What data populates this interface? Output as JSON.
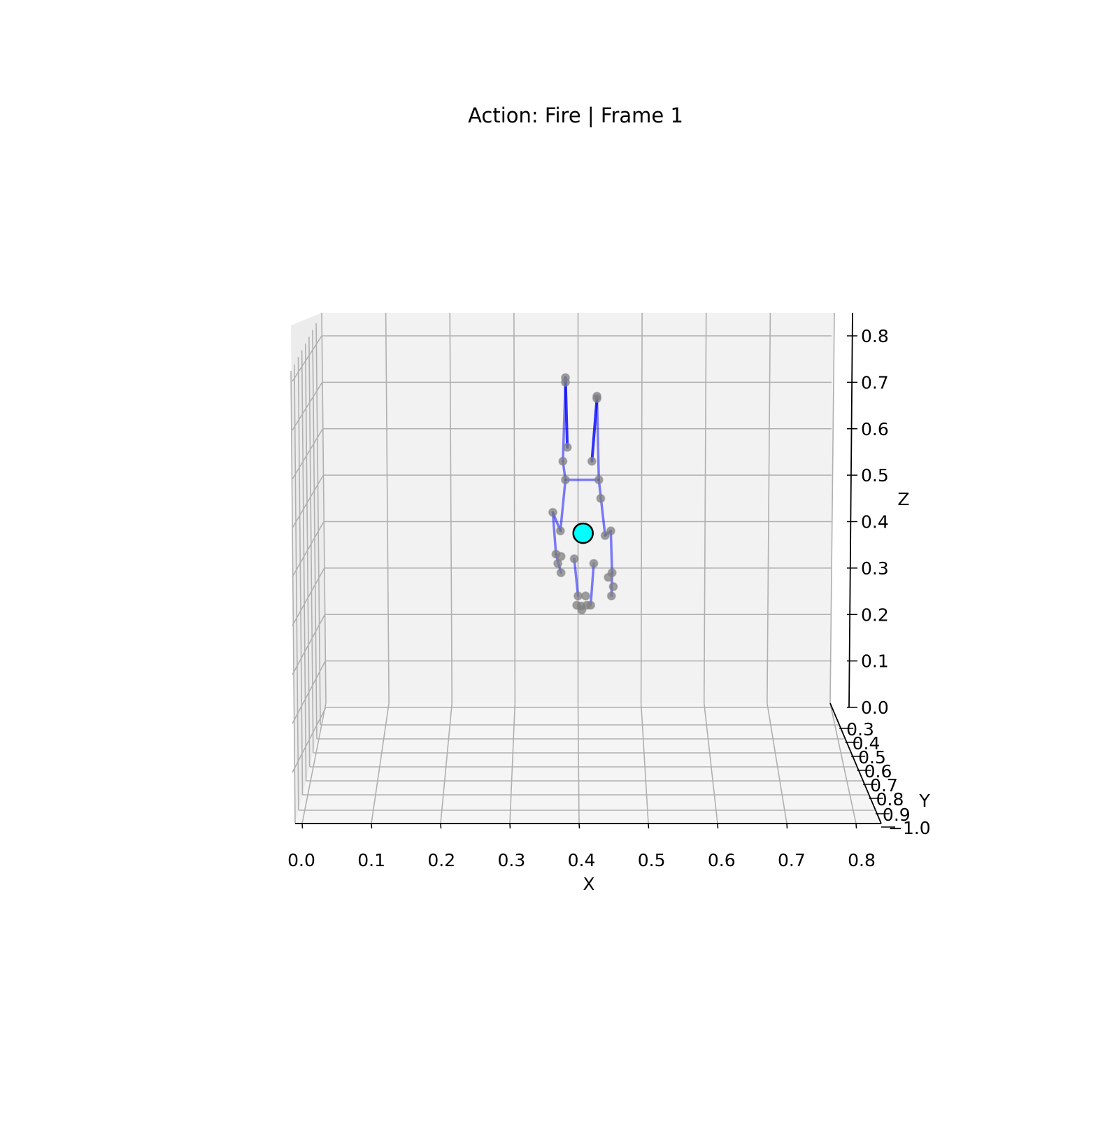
{
  "chart_data": {
    "type": "scatter",
    "projection": "3d",
    "title": "Action: Fire | Frame 1",
    "xlabel": "X",
    "ylabel": "Y",
    "zlabel": "Z",
    "xlim": [
      0.0,
      0.8
    ],
    "ylim": [
      -1.0,
      0.3
    ],
    "zlim": [
      0.0,
      0.8
    ],
    "x_ticks": [
      "0.0",
      "0.1",
      "0.2",
      "0.3",
      "0.4",
      "0.5",
      "0.6",
      "0.7",
      "0.8"
    ],
    "y_ticks": [
      "0.3",
      "0.4",
      "0.5",
      "0.6",
      "0.7",
      "0.8",
      "0.9",
      "−1.0"
    ],
    "z_ticks": [
      "0.0",
      "0.1",
      "0.2",
      "0.3",
      "0.4",
      "0.5",
      "0.6",
      "0.7",
      "0.8"
    ],
    "grid": true,
    "colors": {
      "bone": "#0000ff",
      "joint": "#808080",
      "highlight": "#00ffff",
      "pane": "#f2f2f2",
      "grid": "#b0b0b0"
    },
    "joints": [
      {
        "x": 0.38,
        "z": 0.71
      },
      {
        "x": 0.38,
        "z": 0.7
      },
      {
        "x": 0.383,
        "z": 0.56
      },
      {
        "x": 0.376,
        "z": 0.53
      },
      {
        "x": 0.43,
        "z": 0.67
      },
      {
        "x": 0.43,
        "z": 0.665
      },
      {
        "x": 0.422,
        "z": 0.53
      },
      {
        "x": 0.38,
        "z": 0.49
      },
      {
        "x": 0.433,
        "z": 0.49
      },
      {
        "x": 0.436,
        "z": 0.45
      },
      {
        "x": 0.36,
        "z": 0.42
      },
      {
        "x": 0.372,
        "z": 0.38
      },
      {
        "x": 0.365,
        "z": 0.33
      },
      {
        "x": 0.373,
        "z": 0.325
      },
      {
        "x": 0.368,
        "z": 0.31
      },
      {
        "x": 0.373,
        "z": 0.29
      },
      {
        "x": 0.443,
        "z": 0.37
      },
      {
        "x": 0.452,
        "z": 0.38
      },
      {
        "x": 0.454,
        "z": 0.29
      },
      {
        "x": 0.448,
        "z": 0.28
      },
      {
        "x": 0.456,
        "z": 0.26
      },
      {
        "x": 0.453,
        "z": 0.24
      },
      {
        "x": 0.394,
        "z": 0.32
      },
      {
        "x": 0.425,
        "z": 0.31
      },
      {
        "x": 0.4,
        "z": 0.24
      },
      {
        "x": 0.412,
        "z": 0.24
      },
      {
        "x": 0.398,
        "z": 0.22
      },
      {
        "x": 0.405,
        "z": 0.218
      },
      {
        "x": 0.414,
        "z": 0.22
      },
      {
        "x": 0.42,
        "z": 0.22
      },
      {
        "x": 0.406,
        "z": 0.21
      }
    ],
    "bones": [
      [
        0,
        2,
        "strong"
      ],
      [
        5,
        6,
        "strong"
      ],
      [
        1,
        3,
        "light"
      ],
      [
        3,
        7,
        "light"
      ],
      [
        7,
        8,
        "light"
      ],
      [
        4,
        8,
        "light"
      ],
      [
        7,
        11,
        "light"
      ],
      [
        11,
        10,
        "light"
      ],
      [
        10,
        12,
        "light"
      ],
      [
        12,
        15,
        "light"
      ],
      [
        8,
        16,
        "light"
      ],
      [
        16,
        17,
        "light"
      ],
      [
        17,
        18,
        "light"
      ],
      [
        18,
        21,
        "light"
      ],
      [
        22,
        24,
        "light"
      ],
      [
        23,
        29,
        "light"
      ]
    ],
    "highlight_point": {
      "x": 0.408,
      "z": 0.375
    }
  }
}
